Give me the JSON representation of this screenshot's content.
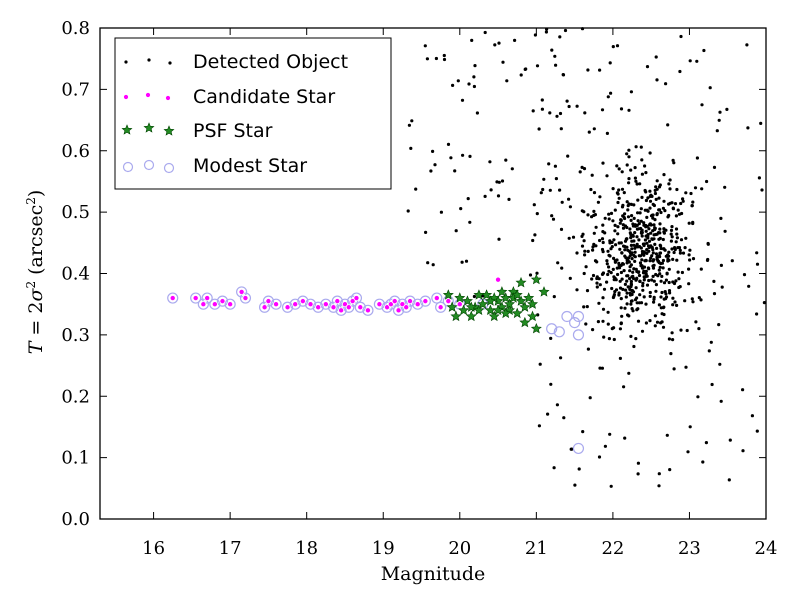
{
  "chart_data": {
    "type": "scatter",
    "xlabel": "Magnitude",
    "ylabel_parts": {
      "T": "T",
      "eq": " = 2",
      "sigma": "σ",
      "sq": "2",
      "unit": " (arcsec",
      "unit_sq": "2",
      "close": ")"
    },
    "xlim": [
      15.3,
      24
    ],
    "ylim": [
      0.0,
      0.8
    ],
    "xticks": [
      "16",
      "17",
      "18",
      "19",
      "20",
      "21",
      "22",
      "23",
      "24"
    ],
    "yticks": [
      "0.0",
      "0.1",
      "0.2",
      "0.3",
      "0.4",
      "0.5",
      "0.6",
      "0.7",
      "0.8"
    ],
    "grid": false,
    "legend_position": "top-left",
    "legend": [
      {
        "label": "Detected Object",
        "marker": "dot",
        "color": "#000000"
      },
      {
        "label": "Candidate Star",
        "marker": "small-circle",
        "color": "#ff00ff"
      },
      {
        "label": "PSF Star",
        "marker": "star",
        "color": "#228b22"
      },
      {
        "label": "Modest Star",
        "marker": "hollow-circle",
        "color": "#9999ee"
      }
    ],
    "series": [
      {
        "name": "Modest Star",
        "color": "#aaaaee",
        "points": [
          [
            16.25,
            0.36
          ],
          [
            16.55,
            0.36
          ],
          [
            16.65,
            0.35
          ],
          [
            16.7,
            0.36
          ],
          [
            16.8,
            0.35
          ],
          [
            16.9,
            0.355
          ],
          [
            17.0,
            0.35
          ],
          [
            17.15,
            0.37
          ],
          [
            17.2,
            0.36
          ],
          [
            17.45,
            0.345
          ],
          [
            17.5,
            0.355
          ],
          [
            17.6,
            0.35
          ],
          [
            17.75,
            0.345
          ],
          [
            17.85,
            0.35
          ],
          [
            17.95,
            0.355
          ],
          [
            18.05,
            0.35
          ],
          [
            18.15,
            0.345
          ],
          [
            18.25,
            0.35
          ],
          [
            18.35,
            0.345
          ],
          [
            18.4,
            0.355
          ],
          [
            18.45,
            0.34
          ],
          [
            18.5,
            0.35
          ],
          [
            18.55,
            0.345
          ],
          [
            18.6,
            0.355
          ],
          [
            18.65,
            0.36
          ],
          [
            18.7,
            0.345
          ],
          [
            18.8,
            0.34
          ],
          [
            18.95,
            0.35
          ],
          [
            19.05,
            0.345
          ],
          [
            19.1,
            0.35
          ],
          [
            19.15,
            0.355
          ],
          [
            19.2,
            0.34
          ],
          [
            19.25,
            0.35
          ],
          [
            19.3,
            0.345
          ],
          [
            19.35,
            0.355
          ],
          [
            19.45,
            0.35
          ],
          [
            19.55,
            0.355
          ],
          [
            19.7,
            0.36
          ],
          [
            19.75,
            0.345
          ],
          [
            19.85,
            0.355
          ],
          [
            20.0,
            0.35
          ],
          [
            20.3,
            0.35
          ],
          [
            21.2,
            0.31
          ],
          [
            21.4,
            0.33
          ],
          [
            21.5,
            0.32
          ],
          [
            21.55,
            0.33
          ],
          [
            21.3,
            0.305
          ],
          [
            21.55,
            0.3
          ],
          [
            21.55,
            0.115
          ]
        ]
      },
      {
        "name": "Candidate Star",
        "color": "#ff00ff",
        "points": [
          [
            16.25,
            0.36
          ],
          [
            16.55,
            0.36
          ],
          [
            16.65,
            0.35
          ],
          [
            16.7,
            0.36
          ],
          [
            16.8,
            0.35
          ],
          [
            16.9,
            0.355
          ],
          [
            17.0,
            0.35
          ],
          [
            17.15,
            0.37
          ],
          [
            17.2,
            0.36
          ],
          [
            17.45,
            0.345
          ],
          [
            17.5,
            0.355
          ],
          [
            17.6,
            0.35
          ],
          [
            17.75,
            0.345
          ],
          [
            17.85,
            0.35
          ],
          [
            17.95,
            0.355
          ],
          [
            18.05,
            0.35
          ],
          [
            18.15,
            0.345
          ],
          [
            18.25,
            0.35
          ],
          [
            18.35,
            0.345
          ],
          [
            18.4,
            0.355
          ],
          [
            18.45,
            0.34
          ],
          [
            18.5,
            0.35
          ],
          [
            18.55,
            0.345
          ],
          [
            18.6,
            0.355
          ],
          [
            18.65,
            0.36
          ],
          [
            18.7,
            0.345
          ],
          [
            18.8,
            0.34
          ],
          [
            18.95,
            0.35
          ],
          [
            19.05,
            0.345
          ],
          [
            19.1,
            0.35
          ],
          [
            19.15,
            0.355
          ],
          [
            19.2,
            0.34
          ],
          [
            19.25,
            0.35
          ],
          [
            19.3,
            0.345
          ],
          [
            19.35,
            0.355
          ],
          [
            19.45,
            0.35
          ],
          [
            19.55,
            0.355
          ],
          [
            19.7,
            0.36
          ],
          [
            19.75,
            0.345
          ],
          [
            19.85,
            0.355
          ],
          [
            20.0,
            0.35
          ],
          [
            20.5,
            0.39
          ],
          [
            20.3,
            0.35
          ]
        ]
      },
      {
        "name": "PSF Star",
        "color": "#228b22",
        "points": [
          [
            19.85,
            0.365
          ],
          [
            19.9,
            0.345
          ],
          [
            19.95,
            0.33
          ],
          [
            20.0,
            0.36
          ],
          [
            20.05,
            0.34
          ],
          [
            20.1,
            0.355
          ],
          [
            20.15,
            0.33
          ],
          [
            20.2,
            0.345
          ],
          [
            20.25,
            0.34
          ],
          [
            20.3,
            0.35
          ],
          [
            20.35,
            0.365
          ],
          [
            20.4,
            0.34
          ],
          [
            20.45,
            0.33
          ],
          [
            20.5,
            0.355
          ],
          [
            20.55,
            0.345
          ],
          [
            20.6,
            0.36
          ],
          [
            20.65,
            0.34
          ],
          [
            20.7,
            0.37
          ],
          [
            20.75,
            0.335
          ],
          [
            20.8,
            0.355
          ],
          [
            20.85,
            0.345
          ],
          [
            20.9,
            0.36
          ],
          [
            20.95,
            0.33
          ],
          [
            21.0,
            0.31
          ],
          [
            21.0,
            0.39
          ],
          [
            20.8,
            0.385
          ],
          [
            20.55,
            0.37
          ],
          [
            20.7,
            0.36
          ],
          [
            20.45,
            0.36
          ],
          [
            20.6,
            0.335
          ],
          [
            20.85,
            0.32
          ],
          [
            20.4,
            0.355
          ],
          [
            20.65,
            0.35
          ],
          [
            20.95,
            0.35
          ],
          [
            20.5,
            0.34
          ],
          [
            20.75,
            0.365
          ],
          [
            20.15,
            0.345
          ],
          [
            20.25,
            0.365
          ],
          [
            21.1,
            0.37
          ]
        ]
      }
    ]
  }
}
